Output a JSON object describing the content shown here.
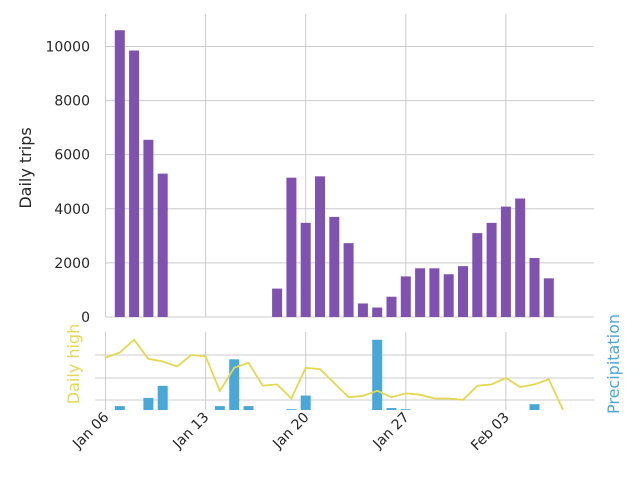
{
  "chart_data": [
    {
      "type": "bar",
      "ylabel": "Daily trips",
      "ylim": [
        0,
        11200
      ],
      "yticks": [
        0,
        2000,
        4000,
        6000,
        8000,
        10000
      ],
      "grid": true,
      "bar_color": "#7f52b0",
      "dates": [
        "Jan 07",
        "Jan 08",
        "Jan 09",
        "Jan 10",
        "Jan 18",
        "Jan 19",
        "Jan 20",
        "Jan 21",
        "Jan 22",
        "Jan 23",
        "Jan 24",
        "Jan 25",
        "Jan 26",
        "Jan 27",
        "Jan 28",
        "Jan 29",
        "Jan 30",
        "Jan 31",
        "Feb 01",
        "Feb 02",
        "Feb 03",
        "Feb 04",
        "Feb 05",
        "Feb 06"
      ],
      "values": [
        10600,
        9850,
        6550,
        5300,
        1050,
        5150,
        3480,
        5200,
        3700,
        2730,
        500,
        350,
        750,
        1500,
        1800,
        1800,
        1580,
        1880,
        3100,
        3480,
        4080,
        4380,
        2180,
        1430
      ]
    },
    {
      "type": "line",
      "ylabel": "Daily high",
      "line_color": "#e3d84f",
      "dates": [
        "Jan 06",
        "Jan 07",
        "Jan 08",
        "Jan 09",
        "Jan 10",
        "Jan 11",
        "Jan 12",
        "Jan 13",
        "Jan 14",
        "Jan 15",
        "Jan 16",
        "Jan 17",
        "Jan 18",
        "Jan 19",
        "Jan 20",
        "Jan 21",
        "Jan 22",
        "Jan 23",
        "Jan 24",
        "Jan 25",
        "Jan 26",
        "Jan 27",
        "Jan 28",
        "Jan 29",
        "Jan 30",
        "Jan 31",
        "Feb 01",
        "Feb 02",
        "Feb 03",
        "Feb 04",
        "Feb 05",
        "Feb 06",
        "Feb 07"
      ],
      "values": [
        53,
        57,
        67,
        52,
        50,
        46,
        55,
        54,
        27,
        45,
        49,
        31,
        32,
        21,
        45,
        44,
        33,
        22,
        23,
        27,
        22,
        25,
        24,
        21,
        21,
        20,
        31,
        32,
        37,
        30,
        32,
        36,
        11
      ]
    },
    {
      "type": "bar",
      "ylabel": "Precipitation",
      "bar_color": "#4aa8d8",
      "dates": [
        "Jan 07",
        "Jan 09",
        "Jan 10",
        "Jan 14",
        "Jan 15",
        "Jan 16",
        "Jan 19",
        "Jan 20",
        "Jan 25",
        "Jan 26",
        "Jan 27",
        "Feb 05"
      ],
      "values": [
        0.1,
        0.31,
        0.62,
        0.1,
        1.3,
        0.1,
        0.02,
        0.37,
        1.8,
        0.05,
        0.02,
        0.15
      ]
    }
  ],
  "x_axis": {
    "ticks": [
      "Jan 06",
      "Jan 13",
      "Jan 20",
      "Jan 27",
      "Feb 03"
    ]
  }
}
